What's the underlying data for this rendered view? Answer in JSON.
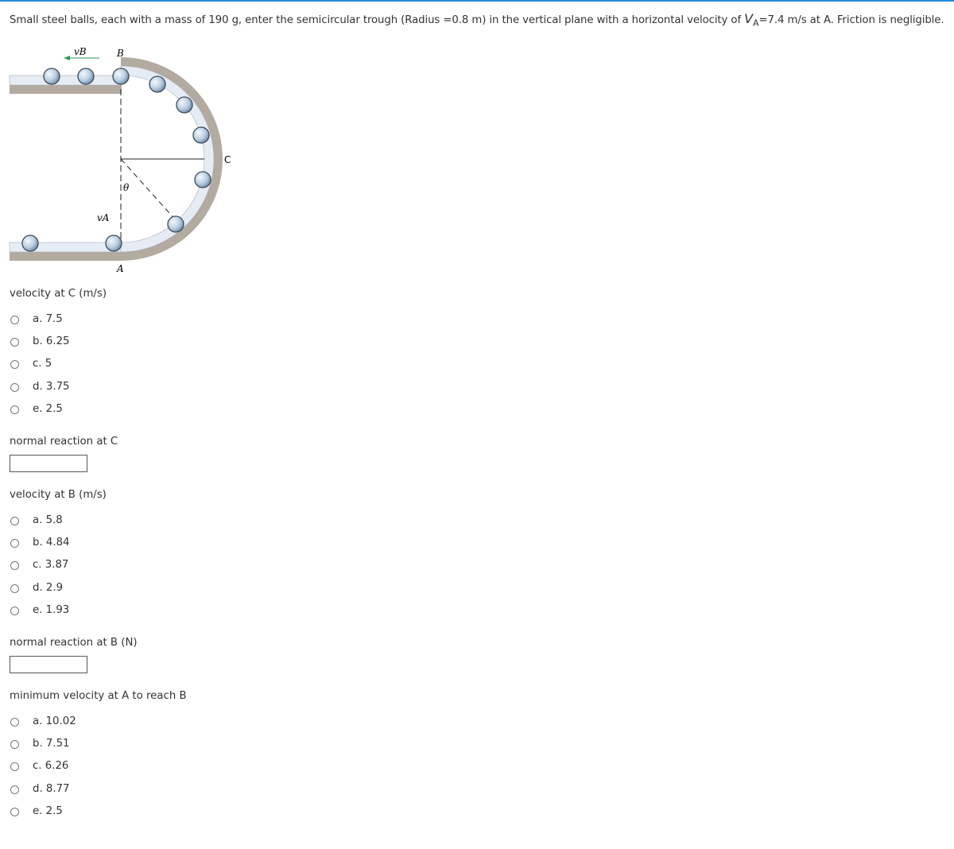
{
  "question": {
    "text_before": "Small steel balls, each with a mass of 190 g, enter the semicircular trough (Radius =0.8 m) in the vertical plane with a horizontal velocity of ",
    "symbol": "V",
    "subscript": "A",
    "text_after": "=7.4 m/s at A. Friction is negligible."
  },
  "figure": {
    "label_vb": "vB",
    "label_b": "B",
    "label_c": "C",
    "label_theta": "θ",
    "label_va": "vA",
    "label_a": "A"
  },
  "parts": [
    {
      "prompt": "velocity at C (m/s)",
      "options": [
        "a. 7.5",
        "b. 6.25",
        "c. 5",
        "d. 3.75",
        "e. 2.5"
      ]
    },
    {
      "prompt": "normal reaction at C"
    },
    {
      "prompt": "velocity at B (m/s)",
      "options": [
        "a. 5.8",
        "b. 4.84",
        "c. 3.87",
        "d. 2.9",
        "e. 1.93"
      ]
    },
    {
      "prompt": "normal reaction at B (N)"
    },
    {
      "prompt": "minimum velocity at A to reach B",
      "options": [
        "a. 10.02",
        "b. 7.51",
        "c. 6.26",
        "d. 8.77",
        "e. 2.5"
      ]
    }
  ]
}
